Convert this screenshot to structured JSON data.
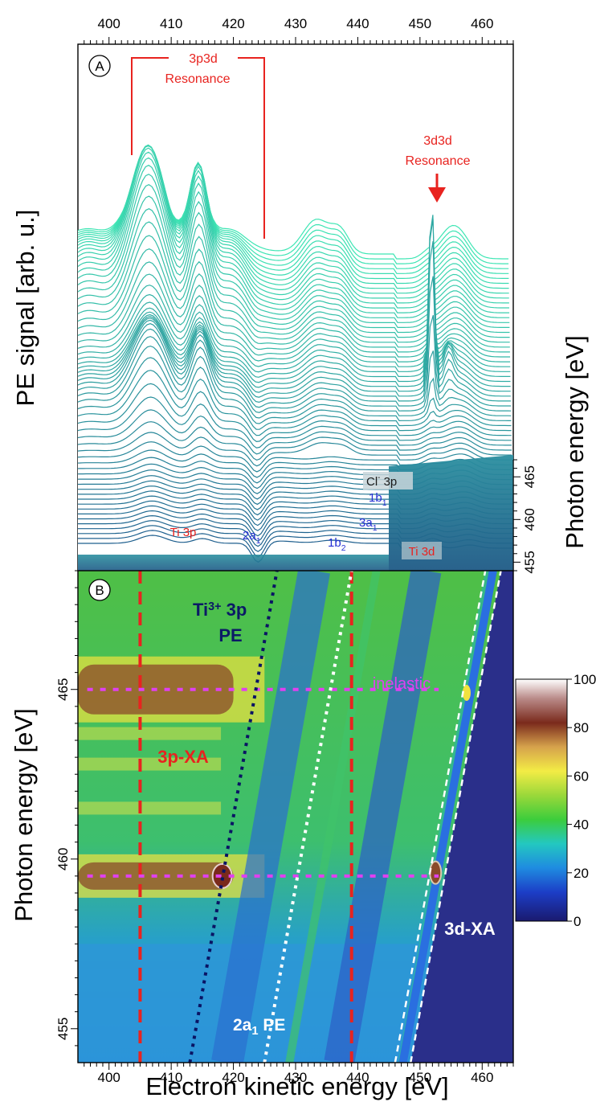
{
  "chart_data": [
    {
      "panel": "A",
      "type": "line",
      "xlabel": "Electron kinetic energy [eV]",
      "ylabel": "PE signal [arb. u.]",
      "zlabel": "Photon energy [eV]",
      "xlim": [
        395,
        465
      ],
      "x_ticks": [
        400,
        410,
        420,
        430,
        440,
        450,
        460
      ],
      "z_ticks": [
        455,
        460,
        465
      ],
      "zlim": [
        454,
        467
      ],
      "annotations": [
        {
          "text": "3p3d",
          "color": "#e8231f"
        },
        {
          "text": "Resonance",
          "color": "#e8231f"
        },
        {
          "text": "3d3d",
          "color": "#e8231f"
        },
        {
          "text": "Resonance",
          "color": "#e8231f"
        },
        {
          "text": "Ti 3p",
          "color": "#e8231f"
        },
        {
          "text": "Ti 3d",
          "color": "#e8231f"
        },
        {
          "text": "2a",
          "sub": "1",
          "color": "#2630d4"
        },
        {
          "text": "1b",
          "sub": "2",
          "color": "#2630d4"
        },
        {
          "text": "3a",
          "sub": "1",
          "color": "#2630d4"
        },
        {
          "text": "1b",
          "sub": "1",
          "color": "#2630d4"
        },
        {
          "text": "Cl",
          "sup": "-",
          "tail": " 3p",
          "color": "#1a1a1a"
        }
      ],
      "colors": {
        "low": "#1e5f8e",
        "high": "#3ee6b4"
      },
      "series_count": 60
    },
    {
      "panel": "B",
      "type": "heatmap",
      "xlabel": "Electron kinetic energy [eV]",
      "ylabel": "Photon energy [eV]",
      "xlim": [
        395,
        465
      ],
      "ylim": [
        454,
        468.5
      ],
      "x_ticks": [
        400,
        410,
        420,
        430,
        440,
        450,
        460
      ],
      "y_ticks": [
        455,
        460,
        465
      ],
      "colorbar": {
        "ticks": [
          0,
          20,
          40,
          60,
          80,
          100
        ],
        "range": [
          0,
          100
        ]
      },
      "labels": {
        "ti3p_line1": "Ti",
        "ti3p_sup": "3+",
        "ti3p_tail": " 3p",
        "ti3p_line2": "PE",
        "inelastic": "inelastic",
        "xa3p": "3p-XA",
        "xa3d": "3d-XA",
        "a1pe": "2a",
        "a1pe_sub": "1",
        "a1pe_tail": " PE"
      },
      "resonances_photon_energy": [
        459.5,
        465
      ],
      "resonance_kinetic_energy": [
        405,
        439
      ],
      "diagonal_lines": [
        {
          "name": "Ti3+ 3p PE",
          "points": [
            [
              413,
              454
            ],
            [
              427,
              468.5
            ]
          ],
          "color": "#0a1464"
        },
        {
          "name": "2a1 PE",
          "points": [
            [
              425,
              454
            ],
            [
              439,
              468.5
            ]
          ],
          "color": "#ffffff"
        },
        {
          "name": "3d-XA lower",
          "points": [
            [
              446,
              454
            ],
            [
              460.5,
              468.5
            ]
          ],
          "color": "#ffffff"
        },
        {
          "name": "3d-XA upper",
          "points": [
            [
              448.5,
              454
            ],
            [
              463,
              468.5
            ]
          ],
          "color": "#ffffff"
        }
      ]
    }
  ],
  "panel_labels": {
    "a": "A",
    "b": "B"
  }
}
